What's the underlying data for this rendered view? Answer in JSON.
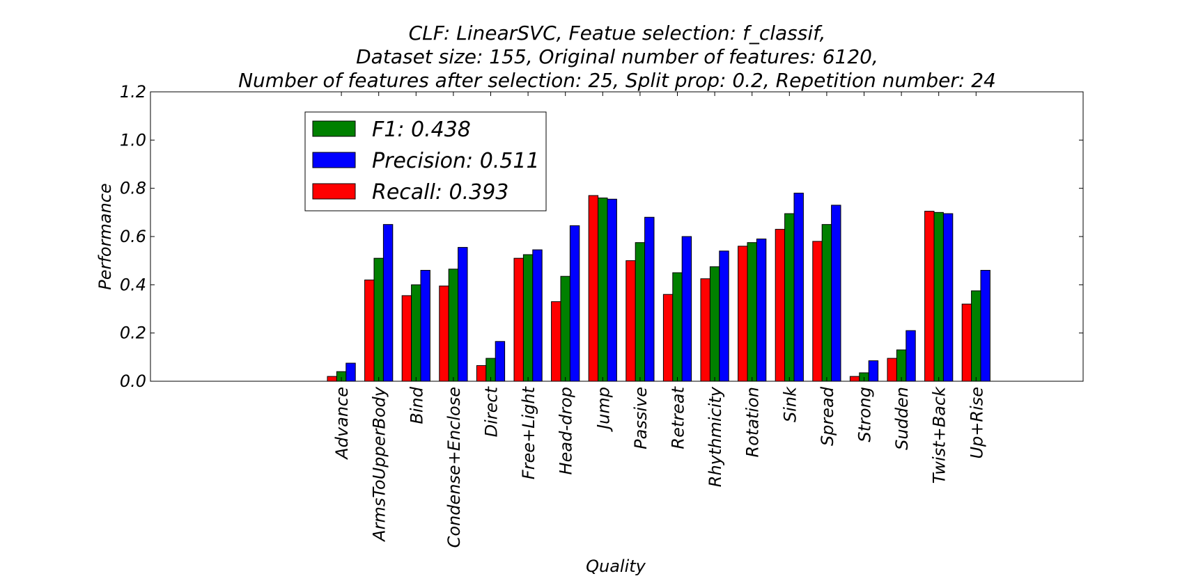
{
  "chart_data": {
    "type": "bar",
    "title": [
      "CLF: LinearSVC, Featue selection: f_classif,",
      "Dataset size: 155, Original number of features: 6120,",
      "Number of features after selection: 25, Split prop: 0.2, Repetition number: 24"
    ],
    "xlabel": "Quality",
    "ylabel": "Performance",
    "ylim": [
      0,
      1.2
    ],
    "yticks": [
      "0.0",
      "0.2",
      "0.4",
      "0.6",
      "0.8",
      "1.0",
      "1.2"
    ],
    "legend_position": "upper-left",
    "categories": [
      "Advance",
      "ArmsToUpperBody",
      "Bind",
      "Condense+Enclose",
      "Direct",
      "Free+Light",
      "Head-drop",
      "Jump",
      "Passive",
      "Retreat",
      "Rhythmicity",
      "Rotation",
      "Sink",
      "Spread",
      "Strong",
      "Sudden",
      "Twist+Back",
      "Up+Rise"
    ],
    "series": [
      {
        "name": "Recall",
        "legend_label": "Recall: 0.393",
        "color": "#ff0000",
        "values": [
          0.02,
          0.42,
          0.355,
          0.395,
          0.065,
          0.51,
          0.33,
          0.77,
          0.5,
          0.36,
          0.425,
          0.56,
          0.63,
          0.58,
          0.02,
          0.095,
          0.705,
          0.32
        ]
      },
      {
        "name": "F1",
        "legend_label": "F1: 0.438",
        "color": "#008000",
        "values": [
          0.04,
          0.51,
          0.4,
          0.465,
          0.095,
          0.525,
          0.435,
          0.76,
          0.575,
          0.45,
          0.475,
          0.575,
          0.695,
          0.65,
          0.035,
          0.13,
          0.7,
          0.375
        ]
      },
      {
        "name": "Precision",
        "legend_label": "Precision: 0.511",
        "color": "#0000ff",
        "values": [
          0.075,
          0.65,
          0.46,
          0.555,
          0.165,
          0.545,
          0.645,
          0.755,
          0.68,
          0.6,
          0.54,
          0.59,
          0.78,
          0.73,
          0.085,
          0.21,
          0.695,
          0.46
        ]
      }
    ],
    "legend_order": [
      "F1",
      "Precision",
      "Recall"
    ]
  }
}
